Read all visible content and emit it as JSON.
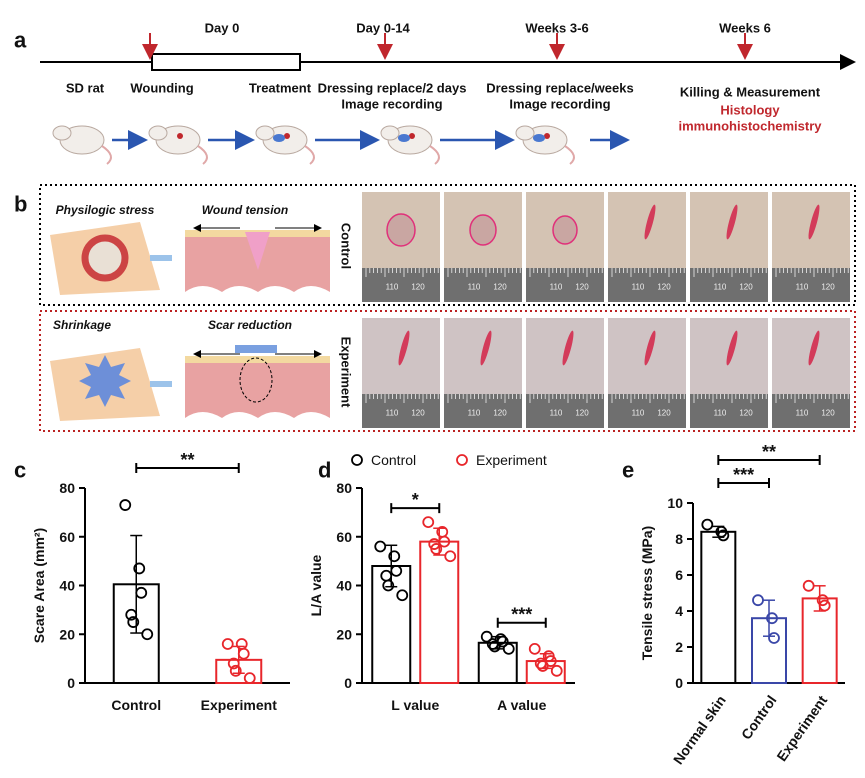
{
  "panel_labels": [
    "a",
    "b",
    "c",
    "d",
    "e"
  ],
  "timeline": {
    "markers": [
      "Day 0",
      "Day 0-14",
      "Weeks 3-6",
      "Weeks 6"
    ],
    "steps": [
      [
        "SD rat"
      ],
      [
        "Wounding"
      ],
      [
        "Treatment"
      ],
      [
        "Dressing replace/2 days",
        "Image recording"
      ],
      [
        "Dressing replace/weeks",
        "Image recording"
      ],
      [
        "Killing & Measurement"
      ]
    ],
    "outcomes": [
      "Histology",
      "immunohistochemistry"
    ]
  },
  "schematic": {
    "labels": [
      "Physilogic stress",
      "Wound tension",
      "Shrinkage",
      "Scar reduction"
    ],
    "rows": [
      "Control",
      "Experiment"
    ],
    "ruler_labels": [
      "110",
      "120"
    ]
  },
  "chart_data": [
    {
      "type": "bar",
      "ylabel": "Scare Area (mm²)",
      "categories": [
        "Control",
        "Experiment"
      ],
      "values": [
        40.5,
        9.5
      ],
      "errors": [
        20,
        5.5
      ],
      "points": [
        [
          73,
          47,
          37,
          28,
          25,
          20
        ],
        [
          16,
          16,
          12,
          8,
          5,
          2
        ]
      ],
      "colors": [
        "#000000",
        "#e8262b"
      ],
      "ylim": [
        0,
        80
      ],
      "yticks": [
        0,
        20,
        40,
        60,
        80
      ],
      "significance": [
        {
          "from": 0,
          "to": 1,
          "label": "**"
        }
      ]
    },
    {
      "type": "grouped_bar",
      "ylabel": "L/A value",
      "categories": [
        "L value",
        "A value"
      ],
      "series": [
        {
          "name": "Control",
          "color": "#000000",
          "values": [
            48,
            16.5
          ],
          "errors": [
            8.5,
            2.5
          ],
          "points": [
            [
              56,
              52,
              46,
              44,
              40,
              36
            ],
            [
              19,
              18,
              17,
              16,
              15,
              14
            ]
          ]
        },
        {
          "name": "Experiment",
          "color": "#e8262b",
          "values": [
            58,
            9
          ],
          "errors": [
            5.5,
            3
          ],
          "points": [
            [
              66,
              62,
              58,
              57,
              55,
              52
            ],
            [
              14,
              11,
              9,
              8,
              7,
              5
            ]
          ]
        }
      ],
      "ylim": [
        0,
        80
      ],
      "yticks": [
        0,
        20,
        40,
        60,
        80
      ],
      "significance": [
        {
          "category": 0,
          "label": "*"
        },
        {
          "category": 1,
          "label": "***"
        }
      ]
    },
    {
      "type": "bar",
      "ylabel": "Tensile stress (MPa)",
      "categories": [
        "Normal skin",
        "Control",
        "Experiment"
      ],
      "values": [
        8.4,
        3.6,
        4.7
      ],
      "errors": [
        0.3,
        1.0,
        0.7
      ],
      "points": [
        [
          8.8,
          8.4,
          8.2
        ],
        [
          4.6,
          3.6,
          2.5
        ],
        [
          5.4,
          4.6,
          4.3
        ]
      ],
      "colors": [
        "#000000",
        "#3a47a8",
        "#e8262b"
      ],
      "ylim": [
        0,
        10
      ],
      "yticks": [
        0,
        2,
        4,
        6,
        8,
        10
      ],
      "significance": [
        {
          "from": 0,
          "to": 1,
          "label": "***"
        },
        {
          "from": 0,
          "to": 2,
          "label": "**"
        }
      ]
    }
  ]
}
